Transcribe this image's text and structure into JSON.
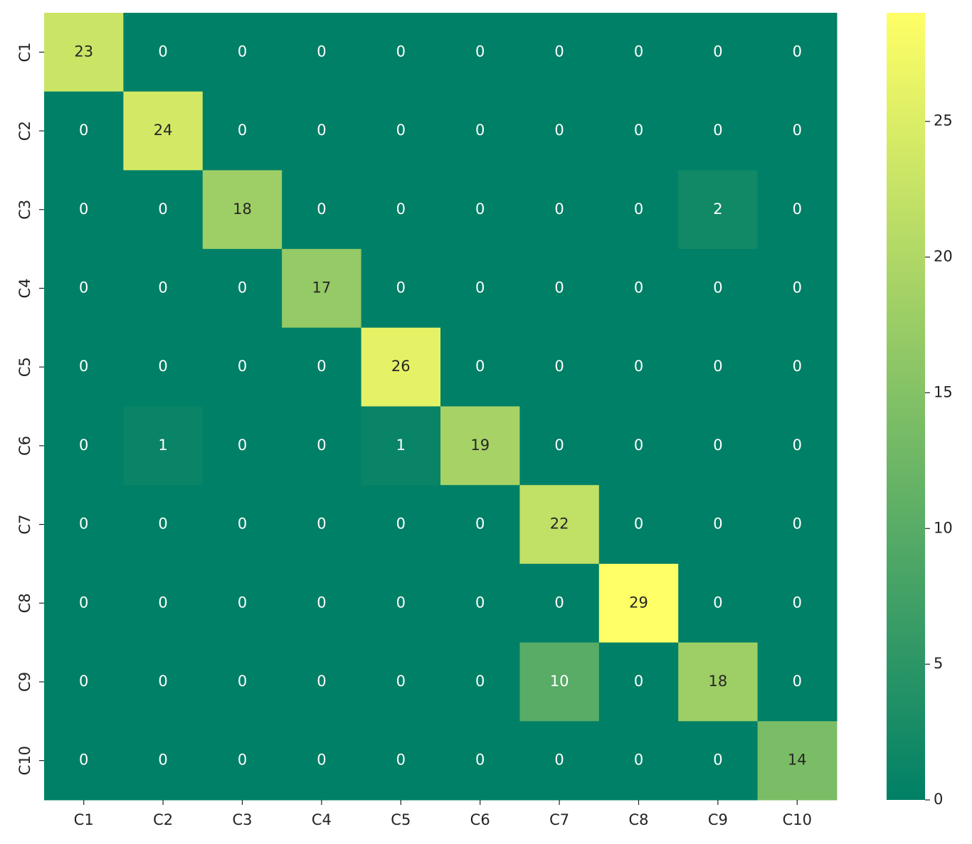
{
  "chart_data": {
    "type": "heatmap",
    "x_categories": [
      "C1",
      "C2",
      "C3",
      "C4",
      "C5",
      "C6",
      "C7",
      "C8",
      "C9",
      "C10"
    ],
    "y_categories": [
      "C1",
      "C2",
      "C3",
      "C4",
      "C5",
      "C6",
      "C7",
      "C8",
      "C9",
      "C10"
    ],
    "values": [
      [
        23,
        0,
        0,
        0,
        0,
        0,
        0,
        0,
        0,
        0
      ],
      [
        0,
        24,
        0,
        0,
        0,
        0,
        0,
        0,
        0,
        0
      ],
      [
        0,
        0,
        18,
        0,
        0,
        0,
        0,
        0,
        2,
        0
      ],
      [
        0,
        0,
        0,
        17,
        0,
        0,
        0,
        0,
        0,
        0
      ],
      [
        0,
        0,
        0,
        0,
        26,
        0,
        0,
        0,
        0,
        0
      ],
      [
        0,
        1,
        0,
        0,
        1,
        19,
        0,
        0,
        0,
        0
      ],
      [
        0,
        0,
        0,
        0,
        0,
        0,
        22,
        0,
        0,
        0
      ],
      [
        0,
        0,
        0,
        0,
        0,
        0,
        0,
        29,
        0,
        0
      ],
      [
        0,
        0,
        0,
        0,
        0,
        0,
        10,
        0,
        18,
        0
      ],
      [
        0,
        0,
        0,
        0,
        0,
        0,
        0,
        0,
        0,
        14
      ]
    ],
    "color_low": "#008066",
    "color_high": "#ffff66",
    "colorbar_lim": [
      0,
      29
    ],
    "colorbar_ticks": [
      0,
      5,
      10,
      15,
      20,
      25
    ]
  }
}
